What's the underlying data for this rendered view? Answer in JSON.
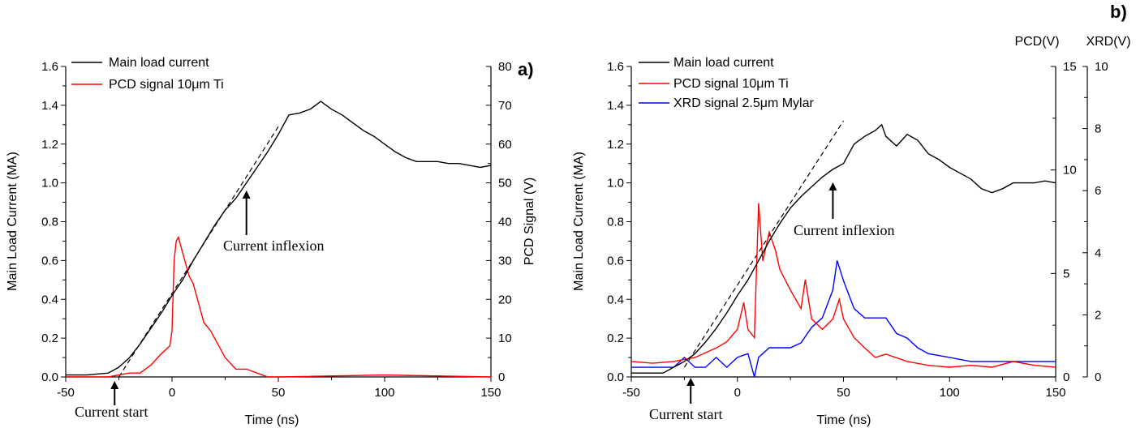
{
  "chart_data": [
    {
      "type": "line",
      "panel_label": "a)",
      "xlabel": "Time (ns)",
      "ylabel": "Main Load Current (MA)",
      "y2label": "PCD Signal (V)",
      "xlim": [
        -50,
        150
      ],
      "ylim": [
        0,
        1.6
      ],
      "y2lim": [
        0,
        80
      ],
      "xticks": [
        "-50",
        "0",
        "50",
        "100",
        "150"
      ],
      "yticks": [
        "0.0",
        "0.2",
        "0.4",
        "0.6",
        "0.8",
        "1.0",
        "1.2",
        "1.4",
        "1.6"
      ],
      "y2ticks": [
        "0",
        "10",
        "20",
        "30",
        "40",
        "50",
        "60",
        "70",
        "80"
      ],
      "legend_position": "top-left",
      "series": [
        {
          "name": "Main load current",
          "color": "#000000",
          "axis": "left",
          "x": [
            -50,
            -40,
            -30,
            -25,
            -20,
            -15,
            -10,
            -5,
            0,
            5,
            10,
            15,
            20,
            25,
            30,
            35,
            40,
            45,
            50,
            55,
            60,
            65,
            70,
            75,
            80,
            85,
            90,
            95,
            100,
            105,
            110,
            115,
            120,
            125,
            130,
            135,
            140,
            145,
            150
          ],
          "y": [
            0.01,
            0.01,
            0.02,
            0.05,
            0.1,
            0.17,
            0.25,
            0.33,
            0.42,
            0.5,
            0.6,
            0.69,
            0.78,
            0.86,
            0.92,
            1.0,
            1.08,
            1.16,
            1.25,
            1.35,
            1.36,
            1.38,
            1.42,
            1.38,
            1.35,
            1.31,
            1.27,
            1.24,
            1.2,
            1.16,
            1.13,
            1.11,
            1.11,
            1.11,
            1.1,
            1.1,
            1.09,
            1.08,
            1.09
          ]
        },
        {
          "name": "PCD signal 10μm Ti",
          "color": "#ff0000",
          "axis": "right",
          "x": [
            -50,
            -30,
            -20,
            -15,
            -10,
            -5,
            -1,
            0,
            1,
            2,
            3,
            5,
            8,
            10,
            12,
            15,
            18,
            20,
            25,
            30,
            35,
            40,
            45,
            50,
            100,
            150
          ],
          "y": [
            0,
            0,
            1,
            1,
            3,
            6,
            8,
            12,
            30,
            35,
            36,
            32,
            26,
            24,
            20,
            14,
            12,
            10,
            5,
            2,
            2,
            1,
            0,
            0,
            0.5,
            0
          ]
        }
      ],
      "fit_line": {
        "style": "dashed",
        "color": "#000000",
        "x": [
          -25,
          50
        ],
        "y": [
          0,
          1.29
        ]
      },
      "annotations": [
        {
          "text": "Current inflexion",
          "x": 35
        },
        {
          "text": "Current start",
          "x": -27
        }
      ]
    },
    {
      "type": "line",
      "panel_label": "b)",
      "xlabel": "Time (ns)",
      "ylabel": "Main Load Current (MA)",
      "y2label": "PCD(V)",
      "y3label": "XRD(V)",
      "xlim": [
        -50,
        150
      ],
      "ylim": [
        0,
        1.6
      ],
      "y2lim": [
        0,
        15
      ],
      "y3lim": [
        0,
        10
      ],
      "xticks": [
        "-50",
        "0",
        "50",
        "100",
        "150"
      ],
      "yticks": [
        "0.0",
        "0.2",
        "0.4",
        "0.6",
        "0.8",
        "1.0",
        "1.2",
        "1.4",
        "1.6"
      ],
      "y2ticks": [
        "0",
        "5",
        "10",
        "15"
      ],
      "y3ticks": [
        "0",
        "2",
        "4",
        "6",
        "8",
        "10"
      ],
      "legend_position": "top-left",
      "series": [
        {
          "name": "Main load current",
          "color": "#000000",
          "axis": "left",
          "x": [
            -50,
            -35,
            -30,
            -25,
            -20,
            -15,
            -10,
            -5,
            0,
            5,
            10,
            15,
            20,
            25,
            30,
            35,
            40,
            45,
            50,
            55,
            60,
            65,
            68,
            70,
            75,
            80,
            85,
            90,
            95,
            100,
            105,
            110,
            115,
            120,
            125,
            130,
            135,
            140,
            145,
            150
          ],
          "y": [
            0.02,
            0.02,
            0.05,
            0.08,
            0.12,
            0.18,
            0.25,
            0.33,
            0.42,
            0.5,
            0.6,
            0.7,
            0.79,
            0.87,
            0.93,
            0.98,
            1.03,
            1.07,
            1.1,
            1.2,
            1.24,
            1.27,
            1.3,
            1.24,
            1.19,
            1.25,
            1.22,
            1.15,
            1.12,
            1.08,
            1.05,
            1.02,
            0.97,
            0.95,
            0.97,
            1.0,
            1.0,
            1.0,
            1.01,
            1.0
          ]
        },
        {
          "name": "PCD signal 10μm Ti",
          "color": "#ff0000",
          "axis": "pcd",
          "x": [
            -50,
            -40,
            -30,
            -20,
            -10,
            -5,
            0,
            3,
            5,
            8,
            10,
            12,
            15,
            18,
            20,
            25,
            30,
            32,
            35,
            40,
            45,
            48,
            50,
            55,
            60,
            65,
            70,
            80,
            90,
            100,
            110,
            120,
            130,
            140,
            150
          ],
          "y": [
            0.75,
            0.66,
            0.75,
            0.94,
            1.4,
            1.7,
            2.3,
            3.6,
            2.3,
            1.9,
            8.4,
            5.6,
            7.0,
            6.1,
            5.2,
            4.2,
            3.3,
            4.7,
            2.8,
            2.3,
            2.8,
            3.75,
            2.8,
            1.9,
            1.4,
            0.94,
            1.1,
            0.75,
            0.56,
            0.47,
            0.56,
            0.47,
            0.75,
            0.56,
            0.47
          ]
        },
        {
          "name": "XRD signal 2.5μm Mylar",
          "color": "#0000ff",
          "axis": "xrd",
          "x": [
            -50,
            -40,
            -30,
            -25,
            -20,
            -15,
            -10,
            -5,
            0,
            5,
            8,
            10,
            15,
            20,
            25,
            30,
            35,
            40,
            45,
            47,
            50,
            55,
            60,
            65,
            70,
            75,
            80,
            85,
            90,
            100,
            110,
            120,
            130,
            140,
            150
          ],
          "y": [
            0.31,
            0.31,
            0.31,
            0.63,
            0.31,
            0.31,
            0.63,
            0.31,
            0.63,
            0.75,
            0,
            0.63,
            0.94,
            0.94,
            0.94,
            1.1,
            1.6,
            1.9,
            2.8,
            3.75,
            3.1,
            2.2,
            1.9,
            1.9,
            1.9,
            1.4,
            1.25,
            0.94,
            0.75,
            0.63,
            0.5,
            0.5,
            0.5,
            0.5,
            0.5
          ]
        }
      ],
      "fit_line": {
        "style": "dashed",
        "color": "#000000",
        "x": [
          -25,
          50
        ],
        "y": [
          0.05,
          1.32
        ]
      },
      "annotations": [
        {
          "text": "Current inflexion",
          "x": 45
        },
        {
          "text": "Current start",
          "x": -22
        }
      ]
    }
  ]
}
